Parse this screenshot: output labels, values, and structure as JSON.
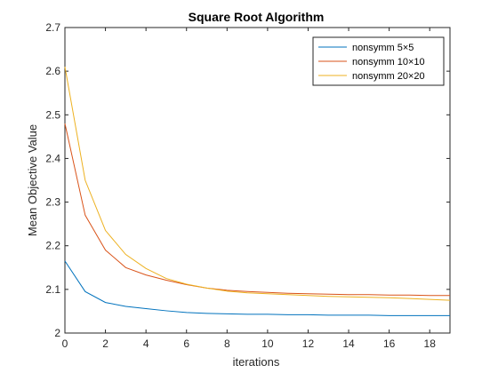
{
  "chart_data": {
    "type": "line",
    "title": "Square Root Algorithm",
    "xlabel": "iterations",
    "ylabel": "Mean Objective Value",
    "xlim": [
      0,
      19
    ],
    "ylim": [
      2,
      2.7
    ],
    "xticks": [
      0,
      2,
      4,
      6,
      8,
      10,
      12,
      14,
      16,
      18
    ],
    "yticks": [
      2,
      2.1,
      2.2,
      2.3,
      2.4,
      2.5,
      2.6,
      2.7
    ],
    "xtick_labels": [
      "0",
      "2",
      "4",
      "6",
      "8",
      "10",
      "12",
      "14",
      "16",
      "18"
    ],
    "ytick_labels": [
      "2",
      "2.1",
      "2.2",
      "2.3",
      "2.4",
      "2.5",
      "2.6",
      "2.7"
    ],
    "grid": false,
    "legend_position": "top-right",
    "x": [
      0,
      1,
      2,
      3,
      4,
      5,
      6,
      7,
      8,
      9,
      10,
      11,
      12,
      13,
      14,
      15,
      16,
      17,
      18,
      19
    ],
    "series": [
      {
        "name": "nonsymm 5×5",
        "color": "#0072BD",
        "values": [
          2.165,
          2.095,
          2.07,
          2.061,
          2.056,
          2.051,
          2.047,
          2.045,
          2.044,
          2.043,
          2.043,
          2.042,
          2.042,
          2.041,
          2.041,
          2.041,
          2.04,
          2.04,
          2.04,
          2.04
        ]
      },
      {
        "name": "nonsymm 10×10",
        "color": "#D95319",
        "values": [
          2.48,
          2.27,
          2.19,
          2.15,
          2.133,
          2.121,
          2.111,
          2.103,
          2.098,
          2.095,
          2.093,
          2.091,
          2.09,
          2.089,
          2.088,
          2.088,
          2.087,
          2.087,
          2.086,
          2.086
        ]
      },
      {
        "name": "nonsymm 20×20",
        "color": "#EDB120",
        "values": [
          2.61,
          2.35,
          2.235,
          2.18,
          2.148,
          2.125,
          2.112,
          2.103,
          2.096,
          2.092,
          2.09,
          2.088,
          2.086,
          2.084,
          2.083,
          2.082,
          2.081,
          2.079,
          2.077,
          2.075
        ]
      }
    ]
  }
}
